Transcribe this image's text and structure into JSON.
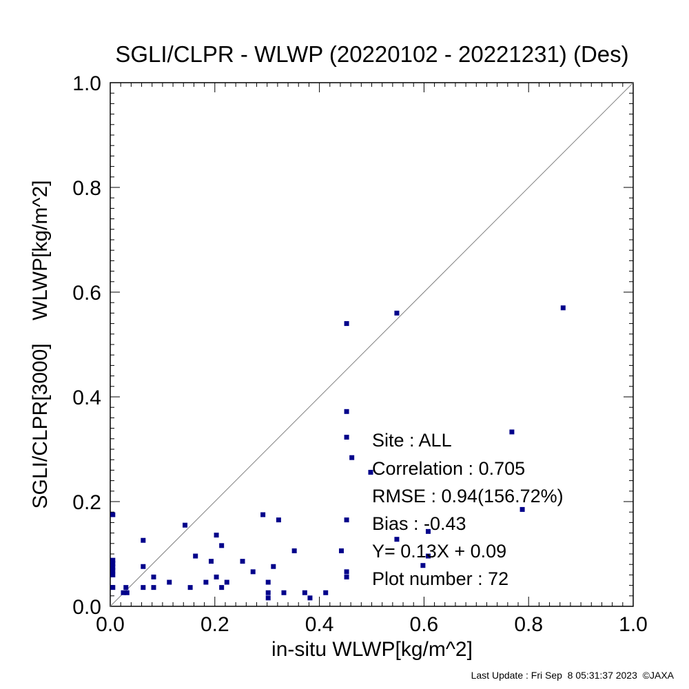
{
  "chart_data": {
    "type": "scatter",
    "title": "SGLI/CLPR - WLWP (20220102 - 20221231) (Des)",
    "xlabel": "in-situ WLWP[kg/m^2]",
    "ylabel": "SGLI/CLPR[3000]    WLWP[kg/m^2]",
    "xlim": [
      0.0,
      1.0
    ],
    "ylim": [
      0.0,
      1.0
    ],
    "x_ticks": [
      "0.0",
      "0.2",
      "0.4",
      "0.6",
      "0.8",
      "1.0"
    ],
    "y_ticks": [
      "0.0",
      "0.2",
      "0.4",
      "0.6",
      "0.8",
      "1.0"
    ],
    "reference_line": "1:1",
    "point_color": "#00008b",
    "line_color": "#808080",
    "series": [
      {
        "points": [
          [
            0.005,
            0.175
          ],
          [
            0.005,
            0.088
          ],
          [
            0.005,
            0.082
          ],
          [
            0.005,
            0.075
          ],
          [
            0.005,
            0.068
          ],
          [
            0.005,
            0.06
          ],
          [
            0.005,
            0.036
          ],
          [
            0.025,
            0.026
          ],
          [
            0.03,
            0.036
          ],
          [
            0.032,
            0.026
          ],
          [
            0.063,
            0.126
          ],
          [
            0.063,
            0.076
          ],
          [
            0.063,
            0.036
          ],
          [
            0.083,
            0.056
          ],
          [
            0.083,
            0.036
          ],
          [
            0.113,
            0.046
          ],
          [
            0.143,
            0.155
          ],
          [
            0.153,
            0.036
          ],
          [
            0.163,
            0.096
          ],
          [
            0.183,
            0.046
          ],
          [
            0.193,
            0.086
          ],
          [
            0.203,
            0.136
          ],
          [
            0.203,
            0.056
          ],
          [
            0.213,
            0.116
          ],
          [
            0.213,
            0.036
          ],
          [
            0.223,
            0.046
          ],
          [
            0.253,
            0.086
          ],
          [
            0.273,
            0.066
          ],
          [
            0.292,
            0.175
          ],
          [
            0.302,
            0.046
          ],
          [
            0.302,
            0.026
          ],
          [
            0.302,
            0.016
          ],
          [
            0.312,
            0.076
          ],
          [
            0.322,
            0.165
          ],
          [
            0.332,
            0.026
          ],
          [
            0.352,
            0.106
          ],
          [
            0.372,
            0.026
          ],
          [
            0.382,
            0.016
          ],
          [
            0.412,
            0.026
          ],
          [
            0.442,
            0.106
          ],
          [
            0.452,
            0.54
          ],
          [
            0.452,
            0.372
          ],
          [
            0.452,
            0.323
          ],
          [
            0.452,
            0.165
          ],
          [
            0.452,
            0.066
          ],
          [
            0.452,
            0.056
          ],
          [
            0.462,
            0.284
          ],
          [
            0.498,
            0.256
          ],
          [
            0.548,
            0.56
          ],
          [
            0.548,
            0.128
          ],
          [
            0.598,
            0.078
          ],
          [
            0.608,
            0.143
          ],
          [
            0.608,
            0.096
          ],
          [
            0.768,
            0.333
          ],
          [
            0.788,
            0.185
          ],
          [
            0.866,
            0.57
          ]
        ]
      }
    ],
    "stats": {
      "site": "Site : ALL",
      "correlation": "Correlation :    0.705",
      "rmse": "RMSE :     0.94(156.72%)",
      "bias": "Bias :    -0.43",
      "regression": "Y=   0.13X +    0.09",
      "plot_number": "Plot number :       72"
    }
  },
  "footer": "Last Update : Fri Sep  8 05:31:37 2023  ©JAXA"
}
